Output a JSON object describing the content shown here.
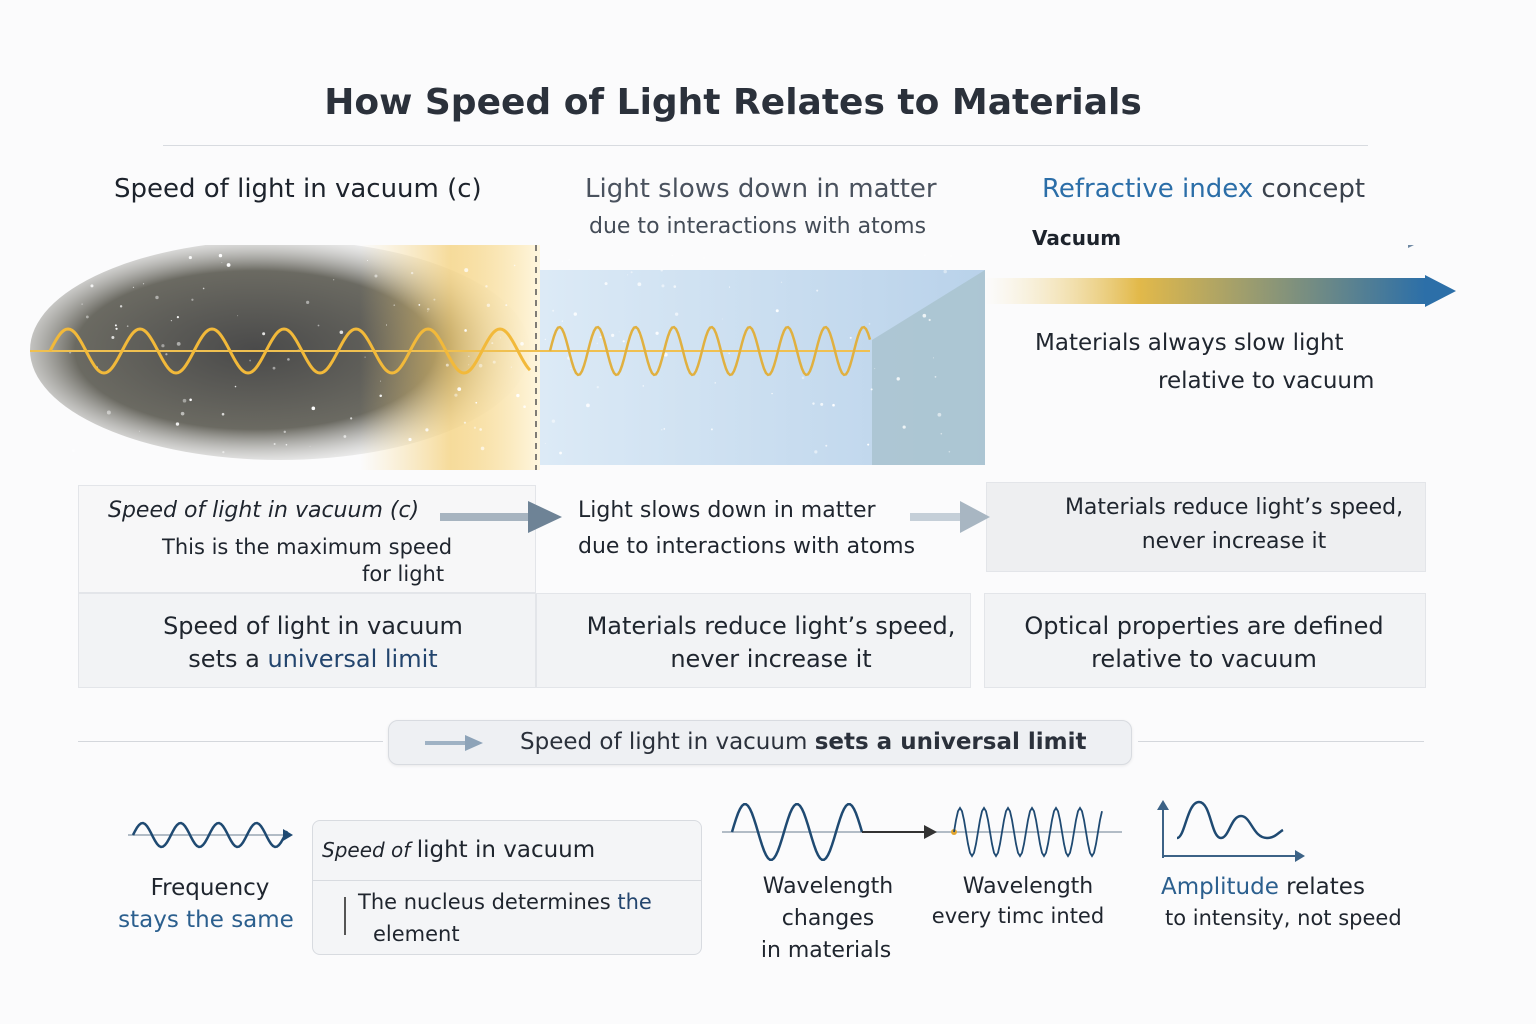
{
  "title": "How Speed of Light Relates to Materials",
  "columns": {
    "vacuum": "Speed of light in vacuum (c)",
    "matter": "Light slows down in matter",
    "matter_sub": "due to interactions with atoms",
    "refractive_a": "Refractive index",
    "refractive_b": " concept",
    "vacuum_label": "Vacuum",
    "materials_slow_1": "Materials always slow light",
    "materials_slow_2": "relative to vacuum"
  },
  "table": {
    "r1c1_title": "Speed of light in vacuum (c)",
    "r1c1_sub1": "This is the maximum speed",
    "r1c1_sub2": "for light",
    "r1c2_1": "Light slows down in matter",
    "r1c2_2": "due to interactions with atoms",
    "r1c3_1": "Materials reduce light’s speed,",
    "r1c3_2": "never increase it",
    "r2c1_1": "Speed of light in vacuum",
    "r2c1_2a": "sets a ",
    "r2c1_2b": "universal limit",
    "r2c2_1": "Materials reduce light’s speed,",
    "r2c2_2": "never increase it",
    "r2c3_1": "Optical properties are defined",
    "r2c3_2": "relative to vacuum"
  },
  "banner": {
    "a": "Speed of light in vacuum ",
    "b": "sets a universal limit"
  },
  "bottom": {
    "freq_1": "Frequency",
    "freq_2": "stays the same",
    "note_title_a": "Speed of ",
    "note_title_b": "light in vacuum",
    "note_body_1a": "The nucleus determines ",
    "note_body_1b": "the",
    "note_body_2": "element",
    "wl1_1": "Wavelength",
    "wl1_2": "changes",
    "wl1_3": "in materials",
    "wl2_1": "Wavelength",
    "wl2_2": "every timc inted",
    "amp_a": "Amplitude",
    "amp_b": " relates",
    "amp_2": "to intensity, not speed"
  },
  "colors": {
    "accent_blue": "#2b6ea8",
    "gold": "#e8b640",
    "dark_blue": "#23456e"
  }
}
